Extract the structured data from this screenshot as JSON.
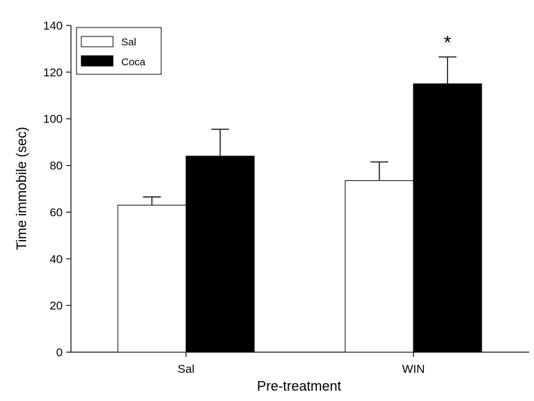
{
  "chart_data": {
    "type": "bar",
    "xlabel": "Pre-treatment",
    "ylabel": "Time immobile (sec)",
    "ylim": [
      0,
      140
    ],
    "yticks": [
      0,
      20,
      40,
      60,
      80,
      100,
      120,
      140
    ],
    "categories": [
      "Sal",
      "WIN"
    ],
    "series": [
      {
        "name": "Sal",
        "values": [
          63,
          73.5
        ],
        "errors": [
          3.5,
          8
        ],
        "color": "#ffffff"
      },
      {
        "name": "Coca",
        "values": [
          84,
          115
        ],
        "errors": [
          11.5,
          11.5
        ],
        "color": "#000000"
      }
    ],
    "legend": {
      "position": "top-left",
      "border": true
    },
    "grid": false,
    "annotations": [
      {
        "text": "*",
        "category": "WIN",
        "series": "Coca"
      }
    ]
  }
}
